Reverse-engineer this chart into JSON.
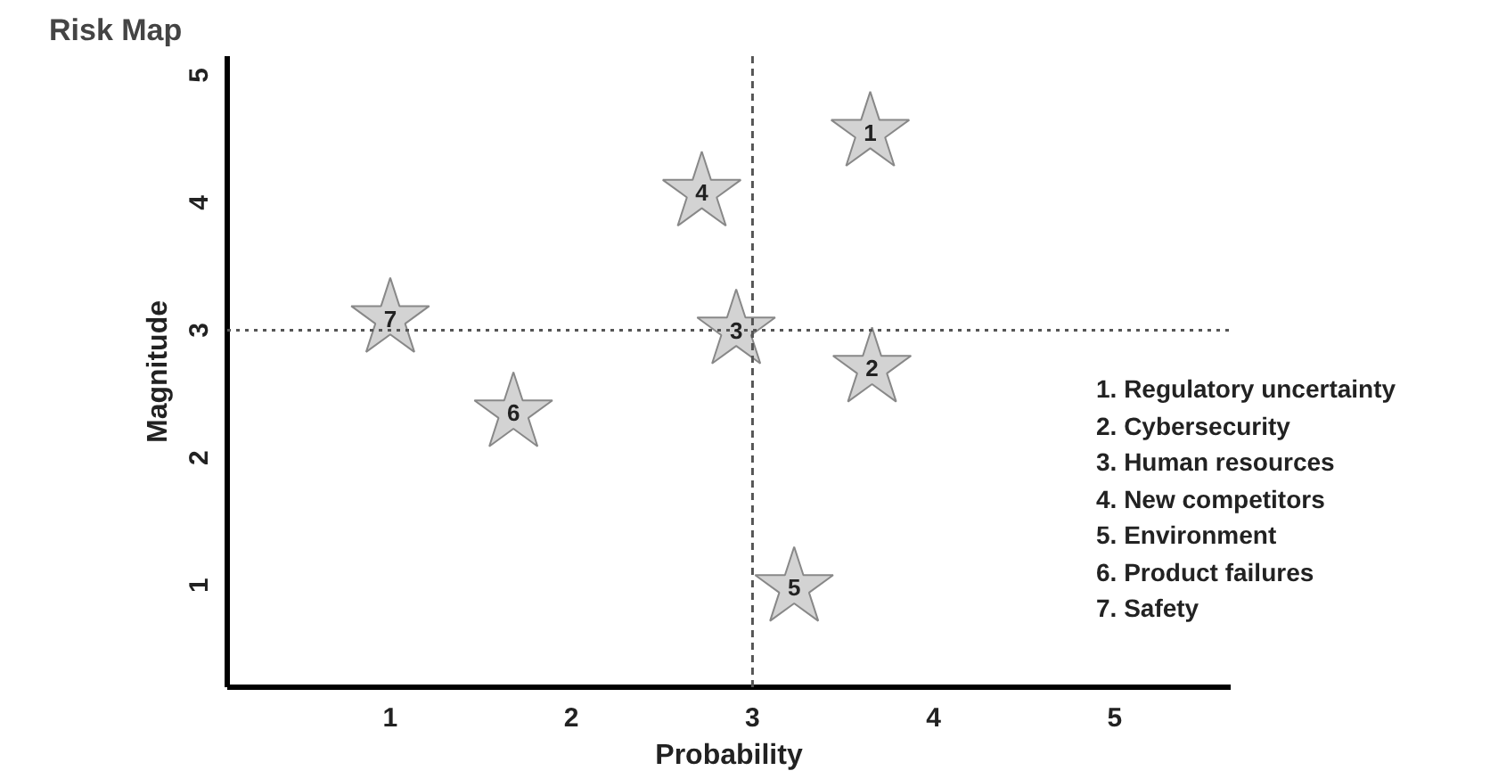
{
  "chart_data": {
    "type": "scatter",
    "title": "Risk Map",
    "xlabel": "Probability",
    "ylabel": "Magnitude",
    "x": [
      3.65,
      3.66,
      2.91,
      2.72,
      3.23,
      1.68,
      1.0
    ],
    "series": [
      {
        "color": "#d3d3d3",
        "values": [
          4.55,
          2.7,
          3.0,
          4.08,
          0.98,
          2.35,
          3.09
        ]
      }
    ],
    "marker": "star",
    "xlim": [
      0.1,
      5.64
    ],
    "ylim": [
      0.2,
      5.15
    ],
    "xticks": [
      1,
      2,
      3,
      4,
      5
    ],
    "yticks": [
      1,
      2,
      3,
      4,
      5
    ],
    "grid": false,
    "ref_lines": [
      {
        "axis": "x",
        "value": 3,
        "line_style": "dashed",
        "color": "#555555"
      },
      {
        "axis": "y",
        "value": 3,
        "line_style": "dotted",
        "color": "#555555"
      }
    ],
    "annotations": [
      {
        "text": "1",
        "x": 3.65,
        "y": 4.55
      },
      {
        "text": "2",
        "x": 3.66,
        "y": 2.7
      },
      {
        "text": "3",
        "x": 2.91,
        "y": 3.0
      },
      {
        "text": "4",
        "x": 2.72,
        "y": 4.08
      },
      {
        "text": "5",
        "x": 3.23,
        "y": 0.98
      },
      {
        "text": "6",
        "x": 1.68,
        "y": 2.35
      },
      {
        "text": "7",
        "x": 1.0,
        "y": 3.09
      },
      "1.  Regulatory uncertainty",
      "2.  Cybersecurity",
      "3.  Human resources",
      "4.  New competitors",
      "5.  Environment",
      "6.  Product failures",
      "7.  Safety"
    ]
  }
}
